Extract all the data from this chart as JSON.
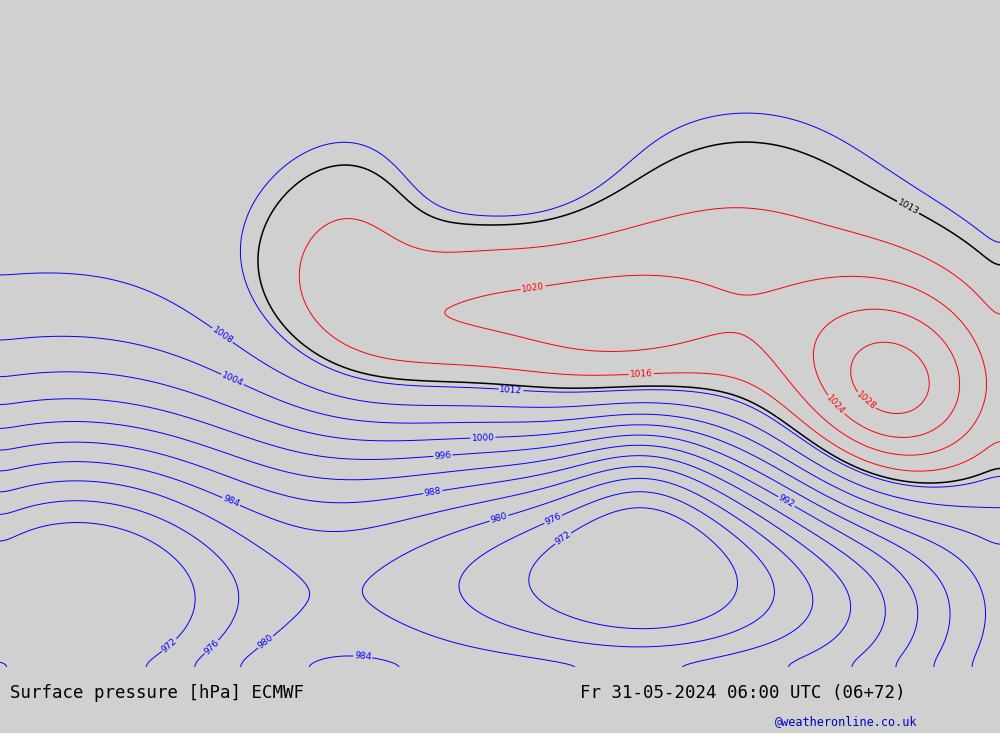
{
  "title_left": "Surface pressure [hPa] ECMWF",
  "title_right": "Fr 31-05-2024 06:00 UTC (06+72)",
  "watermark": "@weatheronline.co.uk",
  "bg_color": "#d0d0d0",
  "land_color": "#aade96",
  "ocean_color": "#d0d0d0",
  "fig_width": 10.0,
  "fig_height": 7.33,
  "dpi": 100,
  "bottom_bar_color": "#e8e8e8",
  "contour_levels_blue": [
    972,
    976,
    980,
    984,
    988,
    992,
    996,
    1000,
    1004,
    1008,
    1012
  ],
  "contour_levels_black": [
    1013
  ],
  "contour_levels_red": [
    1016,
    1020,
    1024,
    1028
  ],
  "lon_min": 60,
  "lon_max": 200,
  "lat_min": -70,
  "lat_max": 10
}
